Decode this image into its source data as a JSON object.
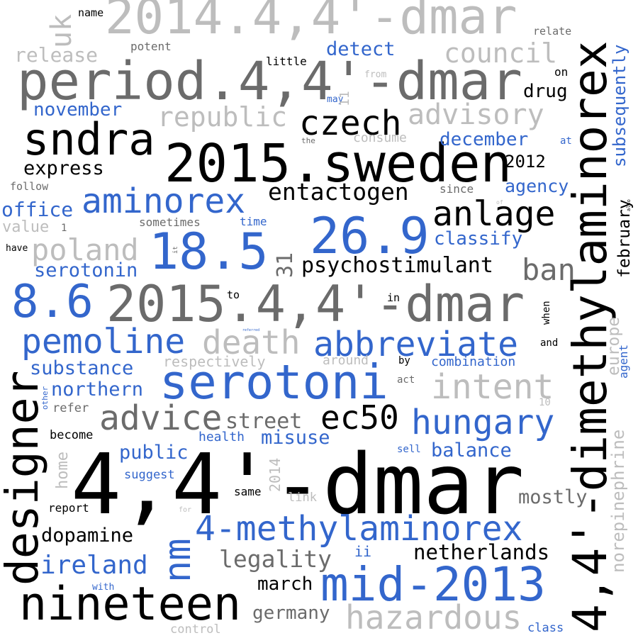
{
  "colors": {
    "black": "#000000",
    "dark_gray": "#6b6b6b",
    "light_gray": "#bdbdbd",
    "blue": "#3366cc"
  },
  "words": [
    {
      "text": "4,4'-dmar",
      "color": "black"
    },
    {
      "text": "4,4'-dimethylaminorex",
      "color": "black"
    },
    {
      "text": "2014.4,4'-dmar",
      "color": "light_gray"
    },
    {
      "text": "period.4,4'-dmar",
      "color": "dark_gray"
    },
    {
      "text": "2015.sweden",
      "color": "black"
    },
    {
      "text": "2015.4,4'-dmar",
      "color": "dark_gray"
    },
    {
      "text": "serotoni",
      "color": "blue"
    },
    {
      "text": "nineteen",
      "color": "black"
    },
    {
      "text": "mid-2013",
      "color": "blue"
    },
    {
      "text": "designer",
      "color": "black"
    },
    {
      "text": "sndra",
      "color": "black"
    },
    {
      "text": "18.5",
      "color": "blue"
    },
    {
      "text": "26.9",
      "color": "blue"
    },
    {
      "text": "8.6",
      "color": "blue"
    },
    {
      "text": "aminorex",
      "color": "blue"
    },
    {
      "text": "pemoline",
      "color": "blue"
    },
    {
      "text": "abbreviate",
      "color": "blue"
    },
    {
      "text": "4-methylaminorex",
      "color": "blue"
    },
    {
      "text": "hungary",
      "color": "blue"
    },
    {
      "text": "anlage",
      "color": "black"
    },
    {
      "text": "czech",
      "color": "black"
    },
    {
      "text": "advice",
      "color": "dark_gray"
    },
    {
      "text": "intent",
      "color": "light_gray"
    },
    {
      "text": "death",
      "color": "light_gray"
    },
    {
      "text": "hazardous",
      "color": "light_gray"
    },
    {
      "text": "nm",
      "color": "blue"
    },
    {
      "text": "ec50",
      "color": "black"
    },
    {
      "text": "poland",
      "color": "light_gray"
    },
    {
      "text": "republic",
      "color": "light_gray"
    },
    {
      "text": "advisory",
      "color": "light_gray"
    },
    {
      "text": "council",
      "color": "light_gray"
    },
    {
      "text": "entactogen",
      "color": "black"
    },
    {
      "text": "psychostimulant",
      "color": "black"
    },
    {
      "text": "ban",
      "color": "dark_gray"
    },
    {
      "text": "ireland",
      "color": "blue"
    },
    {
      "text": "netherlands",
      "color": "black"
    },
    {
      "text": "legality",
      "color": "dark_gray"
    },
    {
      "text": "street",
      "color": "dark_gray"
    },
    {
      "text": "misuse",
      "color": "blue"
    },
    {
      "text": "northern",
      "color": "blue"
    },
    {
      "text": "substance",
      "color": "blue"
    },
    {
      "text": "office",
      "color": "blue"
    },
    {
      "text": "express",
      "color": "black"
    },
    {
      "text": "serotonin",
      "color": "blue"
    },
    {
      "text": "release",
      "color": "light_gray"
    },
    {
      "text": "detect",
      "color": "blue"
    },
    {
      "text": "november",
      "color": "blue"
    },
    {
      "text": "december",
      "color": "blue"
    },
    {
      "text": "agency",
      "color": "blue"
    },
    {
      "text": "classify",
      "color": "blue"
    },
    {
      "text": "public",
      "color": "blue"
    },
    {
      "text": "balance",
      "color": "blue"
    },
    {
      "text": "dopamine",
      "color": "black"
    },
    {
      "text": "march",
      "color": "black"
    },
    {
      "text": "germany",
      "color": "dark_gray"
    },
    {
      "text": "mostly",
      "color": "dark_gray"
    },
    {
      "text": "drug",
      "color": "black"
    },
    {
      "text": "subsequently",
      "color": "blue"
    },
    {
      "text": "february",
      "color": "black"
    },
    {
      "text": "europe",
      "color": "light_gray"
    },
    {
      "text": "norepinephrine",
      "color": "light_gray"
    },
    {
      "text": "uk",
      "color": "light_gray"
    },
    {
      "text": "31",
      "color": "dark_gray"
    },
    {
      "text": "2012",
      "color": "black"
    },
    {
      "text": "combination",
      "color": "blue"
    },
    {
      "text": "respectively",
      "color": "light_gray"
    },
    {
      "text": "health",
      "color": "blue"
    },
    {
      "text": "suggest",
      "color": "blue"
    },
    {
      "text": "report",
      "color": "black"
    },
    {
      "text": "become",
      "color": "black"
    },
    {
      "text": "refer",
      "color": "dark_gray"
    },
    {
      "text": "home",
      "color": "light_gray"
    },
    {
      "text": "2014",
      "color": "light_gray"
    },
    {
      "text": "same",
      "color": "black"
    },
    {
      "text": "link",
      "color": "light_gray"
    },
    {
      "text": "ii",
      "color": "blue"
    },
    {
      "text": "control",
      "color": "light_gray"
    },
    {
      "text": "class",
      "color": "blue"
    },
    {
      "text": "with",
      "color": "blue"
    },
    {
      "text": "sell",
      "color": "blue"
    },
    {
      "text": "10",
      "color": "light_gray"
    },
    {
      "text": "act",
      "color": "dark_gray"
    },
    {
      "text": "by",
      "color": "black"
    },
    {
      "text": "around",
      "color": "light_gray"
    },
    {
      "text": "and",
      "color": "black"
    },
    {
      "text": "when",
      "color": "black"
    },
    {
      "text": "agent",
      "color": "blue"
    },
    {
      "text": "in",
      "color": "black"
    },
    {
      "text": "to",
      "color": "black"
    },
    {
      "text": "sometimes",
      "color": "dark_gray"
    },
    {
      "text": "time",
      "color": "blue"
    },
    {
      "text": "value",
      "color": "light_gray"
    },
    {
      "text": "1",
      "color": "dark_gray"
    },
    {
      "text": "have",
      "color": "black"
    },
    {
      "text": "follow",
      "color": "dark_gray"
    },
    {
      "text": "since",
      "color": "dark_gray"
    },
    {
      "text": "consume",
      "color": "light_gray"
    },
    {
      "text": "the",
      "color": "dark_gray"
    },
    {
      "text": "at",
      "color": "blue"
    },
    {
      "text": "may",
      "color": "blue"
    },
    {
      "text": "11",
      "color": "light_gray"
    },
    {
      "text": "from",
      "color": "light_gray"
    },
    {
      "text": "on",
      "color": "black"
    },
    {
      "text": "little",
      "color": "black"
    },
    {
      "text": "potent",
      "color": "dark_gray"
    },
    {
      "text": "name",
      "color": "black"
    },
    {
      "text": "relate",
      "color": "dark_gray"
    },
    {
      "text": "other",
      "color": "blue"
    },
    {
      "text": "for",
      "color": "light_gray"
    },
    {
      "text": "it",
      "color": "dark_gray"
    },
    {
      "text": "of",
      "color": "light_gray"
    },
    {
      "text": "also",
      "color": "black"
    },
    {
      "text": "referred",
      "color": "blue"
    }
  ]
}
